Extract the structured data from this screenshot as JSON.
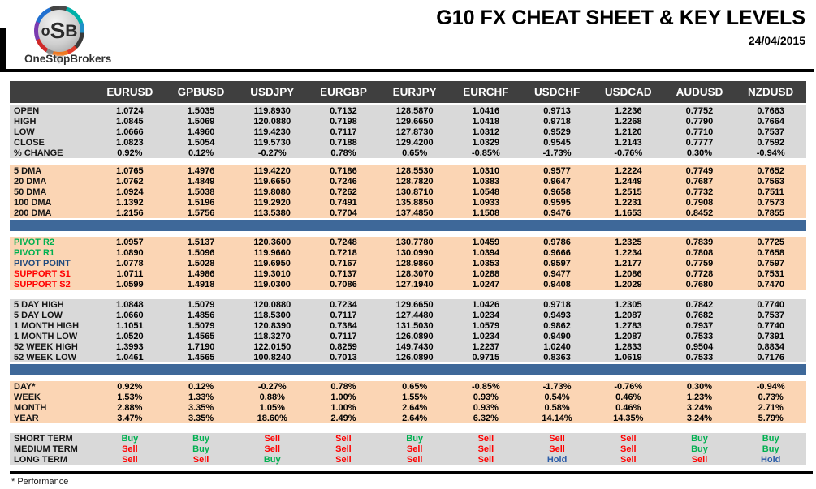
{
  "header": {
    "logo": {
      "monogram": [
        "o",
        "S",
        "B"
      ],
      "brand": "OneStopBrokers"
    },
    "title": "G10 FX CHEAT SHEET & KEY LEVELS",
    "date": "24/04/2015"
  },
  "footnote": "* Performance",
  "colors": {
    "header_bg": "#3F3F3F",
    "section_gray": "#D9D9D9",
    "section_peach": "#FBD5B4",
    "accent_bar": "#3E6899",
    "buy": "#00B050",
    "sell": "#FF0000",
    "hold": "#2A5CA8",
    "pivot_resistance": "#00B050",
    "pivot_point": "#1F497D",
    "support": "#FF0000"
  },
  "table": {
    "columns": [
      "EURUSD",
      "GPBUSD",
      "USDJPY",
      "EURGBP",
      "EURJPY",
      "EURCHF",
      "USDCHF",
      "USDCAD",
      "AUDUSD",
      "NZDUSD"
    ],
    "sections": [
      {
        "name": "ohlc",
        "bg": "gray",
        "rows": [
          {
            "label": "OPEN",
            "values": [
              "1.0724",
              "1.5035",
              "119.8930",
              "0.7132",
              "128.5870",
              "1.0416",
              "0.9713",
              "1.2236",
              "0.7752",
              "0.7663"
            ]
          },
          {
            "label": "HIGH",
            "values": [
              "1.0845",
              "1.5069",
              "120.0880",
              "0.7198",
              "129.6650",
              "1.0418",
              "0.9718",
              "1.2268",
              "0.7790",
              "0.7664"
            ]
          },
          {
            "label": "LOW",
            "values": [
              "1.0666",
              "1.4960",
              "119.4230",
              "0.7117",
              "127.8730",
              "1.0312",
              "0.9529",
              "1.2120",
              "0.7710",
              "0.7537"
            ]
          },
          {
            "label": "CLOSE",
            "values": [
              "1.0823",
              "1.5054",
              "119.5730",
              "0.7188",
              "129.4200",
              "1.0329",
              "0.9545",
              "1.2143",
              "0.7777",
              "0.7592"
            ]
          },
          {
            "label": "% CHANGE",
            "values": [
              "0.92%",
              "0.12%",
              "-0.27%",
              "0.78%",
              "0.65%",
              "-0.85%",
              "-1.73%",
              "-0.76%",
              "0.30%",
              "-0.94%"
            ]
          }
        ]
      },
      {
        "name": "dma",
        "bg": "peach",
        "divider_after": true,
        "rows": [
          {
            "label": "5 DMA",
            "values": [
              "1.0765",
              "1.4976",
              "119.4220",
              "0.7186",
              "128.5530",
              "1.0310",
              "0.9577",
              "1.2224",
              "0.7749",
              "0.7652"
            ]
          },
          {
            "label": "20 DMA",
            "values": [
              "1.0762",
              "1.4849",
              "119.6650",
              "0.7246",
              "128.7820",
              "1.0383",
              "0.9647",
              "1.2449",
              "0.7687",
              "0.7563"
            ]
          },
          {
            "label": "50 DMA",
            "values": [
              "1.0924",
              "1.5038",
              "119.8080",
              "0.7262",
              "130.8710",
              "1.0548",
              "0.9658",
              "1.2515",
              "0.7732",
              "0.7511"
            ]
          },
          {
            "label": "100 DMA",
            "values": [
              "1.1392",
              "1.5196",
              "119.2920",
              "0.7491",
              "135.8850",
              "1.0933",
              "0.9595",
              "1.2231",
              "0.7908",
              "0.7573"
            ]
          },
          {
            "label": "200 DMA",
            "values": [
              "1.2156",
              "1.5756",
              "113.5380",
              "0.7704",
              "137.4850",
              "1.1508",
              "0.9476",
              "1.1653",
              "0.8452",
              "0.7855"
            ]
          }
        ]
      },
      {
        "name": "pivots",
        "bg": "peach",
        "rows": [
          {
            "label": "PIVOT R2",
            "label_color": "pivot_resistance",
            "values": [
              "1.0957",
              "1.5137",
              "120.3600",
              "0.7248",
              "130.7780",
              "1.0459",
              "0.9786",
              "1.2325",
              "0.7839",
              "0.7725"
            ]
          },
          {
            "label": "PIVOT R1",
            "label_color": "pivot_resistance",
            "values": [
              "1.0890",
              "1.5096",
              "119.9660",
              "0.7218",
              "130.0990",
              "1.0394",
              "0.9666",
              "1.2234",
              "0.7808",
              "0.7658"
            ]
          },
          {
            "label": "PIVOT POINT",
            "label_color": "pivot_point",
            "values": [
              "1.0778",
              "1.5028",
              "119.6950",
              "0.7167",
              "128.9860",
              "1.0353",
              "0.9597",
              "1.2177",
              "0.7759",
              "0.7597"
            ]
          },
          {
            "label": "SUPPORT S1",
            "label_color": "support",
            "values": [
              "1.0711",
              "1.4986",
              "119.3010",
              "0.7137",
              "128.3070",
              "1.0288",
              "0.9477",
              "1.2086",
              "0.7728",
              "0.7531"
            ]
          },
          {
            "label": "SUPPORT S2",
            "label_color": "support",
            "values": [
              "1.0599",
              "1.4918",
              "119.0300",
              "0.7086",
              "127.1940",
              "1.0247",
              "0.9408",
              "1.2029",
              "0.7680",
              "0.7470"
            ]
          }
        ]
      },
      {
        "name": "ranges",
        "bg": "gray",
        "divider_after": true,
        "rows": [
          {
            "label": "5 DAY HIGH",
            "values": [
              "1.0848",
              "1.5079",
              "120.0880",
              "0.7234",
              "129.6650",
              "1.0426",
              "0.9718",
              "1.2305",
              "0.7842",
              "0.7740"
            ]
          },
          {
            "label": "5 DAY LOW",
            "values": [
              "1.0660",
              "1.4856",
              "118.5300",
              "0.7117",
              "127.4480",
              "1.0234",
              "0.9493",
              "1.2087",
              "0.7682",
              "0.7537"
            ]
          },
          {
            "label": "1 MONTH HIGH",
            "values": [
              "1.1051",
              "1.5079",
              "120.8390",
              "0.7384",
              "131.5030",
              "1.0579",
              "0.9862",
              "1.2783",
              "0.7937",
              "0.7740"
            ]
          },
          {
            "label": "1 MONTH LOW",
            "values": [
              "1.0520",
              "1.4565",
              "118.3270",
              "0.7117",
              "126.0890",
              "1.0234",
              "0.9490",
              "1.2087",
              "0.7533",
              "0.7391"
            ]
          },
          {
            "label": "52 WEEK HIGH",
            "values": [
              "1.3993",
              "1.7190",
              "122.0150",
              "0.8259",
              "149.7430",
              "1.2237",
              "1.0240",
              "1.2833",
              "0.9504",
              "0.8834"
            ]
          },
          {
            "label": "52 WEEK LOW",
            "values": [
              "1.0461",
              "1.4565",
              "100.8240",
              "0.7013",
              "126.0890",
              "0.9715",
              "0.8363",
              "1.0619",
              "0.7533",
              "0.7176"
            ]
          }
        ]
      },
      {
        "name": "performance",
        "bg": "peach",
        "rows": [
          {
            "label": "DAY*",
            "values": [
              "0.92%",
              "0.12%",
              "-0.27%",
              "0.78%",
              "0.65%",
              "-0.85%",
              "-1.73%",
              "-0.76%",
              "0.30%",
              "-0.94%"
            ]
          },
          {
            "label": "WEEK",
            "values": [
              "1.53%",
              "1.33%",
              "0.88%",
              "1.00%",
              "1.55%",
              "0.93%",
              "0.54%",
              "0.46%",
              "1.23%",
              "0.73%"
            ]
          },
          {
            "label": "MONTH",
            "values": [
              "2.88%",
              "3.35%",
              "1.05%",
              "1.00%",
              "2.64%",
              "0.93%",
              "0.58%",
              "0.46%",
              "3.24%",
              "2.71%"
            ]
          },
          {
            "label": "YEAR",
            "values": [
              "3.47%",
              "3.35%",
              "18.60%",
              "2.49%",
              "2.64%",
              "6.32%",
              "14.14%",
              "14.35%",
              "3.24%",
              "5.79%"
            ]
          }
        ]
      },
      {
        "name": "signals",
        "bg": "gray",
        "signal_colors": true,
        "rows": [
          {
            "label": "SHORT TERM",
            "values": [
              "Buy",
              "Buy",
              "Sell",
              "Sell",
              "Buy",
              "Sell",
              "Sell",
              "Sell",
              "Buy",
              "Buy"
            ]
          },
          {
            "label": "MEDIUM TERM",
            "values": [
              "Sell",
              "Buy",
              "Sell",
              "Sell",
              "Sell",
              "Sell",
              "Sell",
              "Sell",
              "Buy",
              "Buy"
            ]
          },
          {
            "label": "LONG TERM",
            "values": [
              "Sell",
              "Sell",
              "Buy",
              "Sell",
              "Sell",
              "Sell",
              "Hold",
              "Sell",
              "Sell",
              "Hold"
            ]
          }
        ]
      }
    ]
  }
}
